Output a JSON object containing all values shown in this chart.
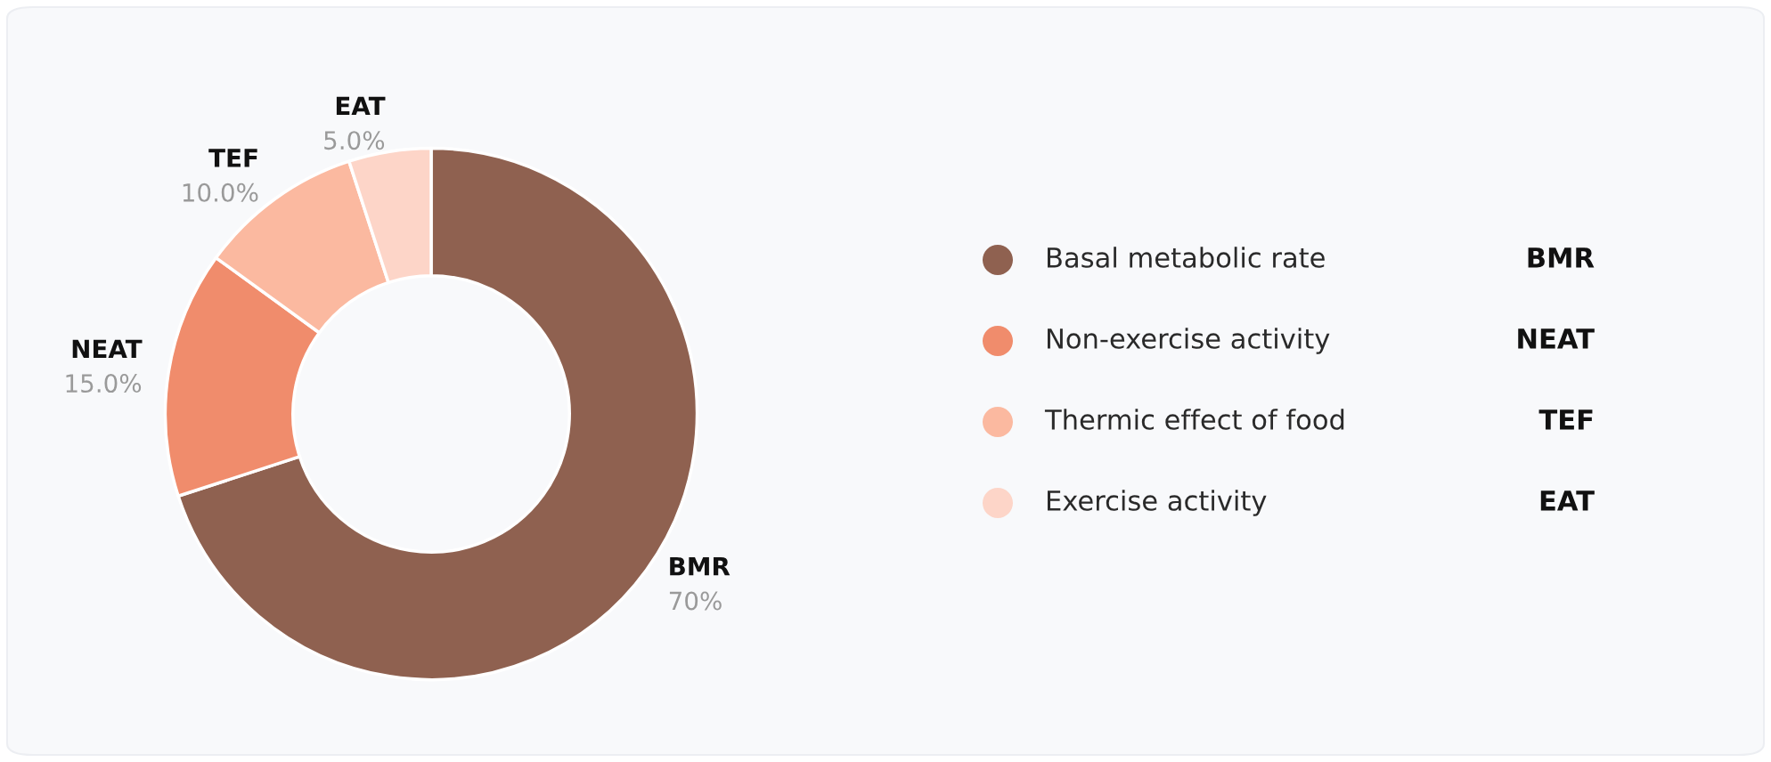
{
  "chart_data": {
    "type": "donut",
    "categories": [
      "BMR",
      "NEAT",
      "TEF",
      "EAT"
    ],
    "values": [
      70,
      15.0,
      10.0,
      5.0
    ],
    "value_labels": [
      "70%",
      "15.0%",
      "10.0%",
      "5.0%"
    ],
    "colors": [
      "#8f6150",
      "#f08c6c",
      "#fbb9a0",
      "#fdd5c8"
    ],
    "annotations": [
      "Basal metabolic rate",
      "Non-exercise activity",
      "Thermic effect of food",
      "Exercise activity"
    ]
  }
}
